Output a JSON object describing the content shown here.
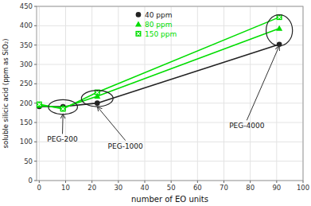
{
  "chart_data": {
    "type": "line",
    "xlabel": "number of EO units",
    "ylabel": "soluble silicic acid (ppm as SiO₂)",
    "x": [
      0,
      9,
      22,
      91
    ],
    "series": [
      {
        "name": "40 ppm",
        "color": "#222222",
        "marker": "circle",
        "values": [
          191,
          191,
          200,
          352
        ]
      },
      {
        "name": "80 ppm",
        "color": "#00dd00",
        "marker": "triangle",
        "values": [
          194,
          188,
          218,
          393
        ]
      },
      {
        "name": "150 ppm",
        "color": "#00dd00",
        "marker": "square",
        "values": [
          197,
          185,
          228,
          422
        ]
      }
    ],
    "xlim": [
      -1,
      100
    ],
    "ylim": [
      0,
      450
    ],
    "xticks": [
      0,
      10,
      20,
      30,
      40,
      50,
      60,
      70,
      80,
      90,
      100
    ],
    "yticks": [
      0,
      50,
      100,
      150,
      200,
      250,
      300,
      350,
      400,
      450
    ],
    "grid": true,
    "legend": "top",
    "ellipses": [
      {
        "x": 9,
        "y": 190,
        "width": 11,
        "height": 38
      },
      {
        "x": 22,
        "y": 212,
        "width": 12,
        "height": 42
      },
      {
        "x": 91,
        "y": 388,
        "width": 10,
        "height": 80
      }
    ],
    "annotations": [
      {
        "text": "PEG-200",
        "x": 9,
        "y": 172,
        "text_x": 3,
        "text_y": 100
      },
      {
        "text": "PEG-1000",
        "x": 22,
        "y": 191,
        "text_x": 26,
        "text_y": 83
      },
      {
        "text": "PEG-4000",
        "x": 91,
        "y": 348,
        "text_x": 72,
        "text_y": 135
      }
    ]
  }
}
